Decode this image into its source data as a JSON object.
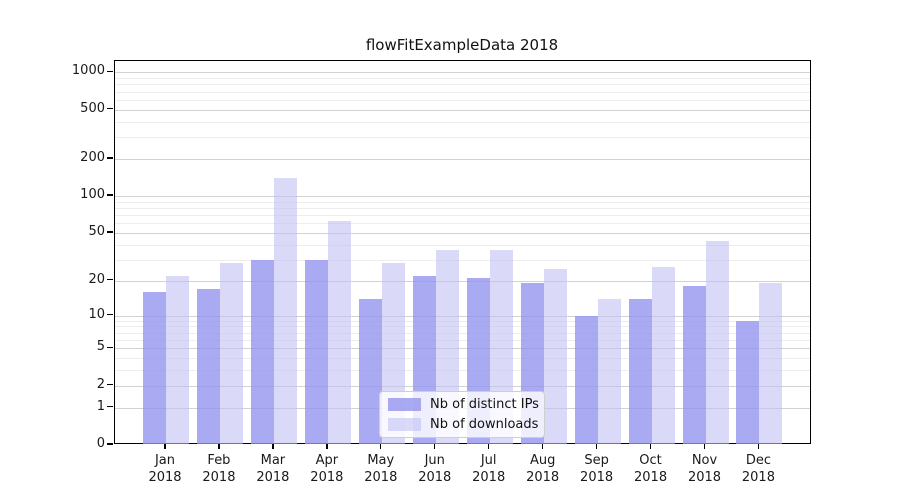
{
  "title": "flowFitExampleData 2018",
  "chart_data": {
    "type": "bar",
    "scale": "log1p",
    "grid": "horizontal",
    "title": "flowFitExampleData 2018",
    "xlabel": "",
    "ylabel": "",
    "categories": [
      "Jan",
      "Feb",
      "Mar",
      "Apr",
      "May",
      "Jun",
      "Jul",
      "Aug",
      "Sep",
      "Oct",
      "Nov",
      "Dec"
    ],
    "category_year": "2018",
    "series": [
      {
        "name": "Nb of distinct IPs",
        "color": "rgba(149,149,239,0.8)",
        "values": [
          16,
          17,
          30,
          30,
          14,
          22,
          21,
          19,
          10,
          14,
          18,
          9
        ]
      },
      {
        "name": "Nb of downloads",
        "color": "rgba(193,193,243,0.6)",
        "values": [
          22,
          28,
          140,
          63,
          28,
          36,
          36,
          25,
          14,
          26,
          43,
          19
        ]
      }
    ],
    "yticks": [
      0,
      1,
      2,
      5,
      10,
      20,
      50,
      100,
      200,
      500,
      1000
    ],
    "minor_gridlines": [
      3,
      4,
      6,
      7,
      8,
      9,
      30,
      40,
      60,
      70,
      80,
      90,
      300,
      400,
      600,
      700,
      800,
      900
    ],
    "ylim": [
      0,
      1100
    ],
    "legend_position": "lower center"
  },
  "colors": {
    "major_grid": "#d2d2d2",
    "minor_grid": "#ededed",
    "spine": "#000000",
    "background": "#ffffff"
  }
}
